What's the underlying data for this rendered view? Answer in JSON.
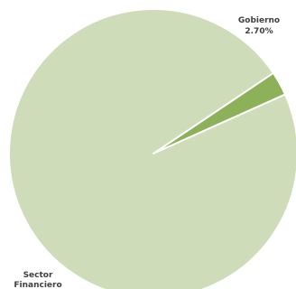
{
  "chart_data": {
    "type": "pie",
    "slices": [
      {
        "label": "Gobierno",
        "value": 2.7,
        "value_label": "2.70%",
        "color": "#8db158",
        "label_position": "outside-top-right"
      },
      {
        "label": "Sector Financiero",
        "value": 97.3,
        "value_label": "",
        "color": "#cfdcb9",
        "label_position": "inside-bottom-left"
      }
    ],
    "title": "",
    "legend": "none",
    "slice_separator_color": "#ffffff"
  }
}
